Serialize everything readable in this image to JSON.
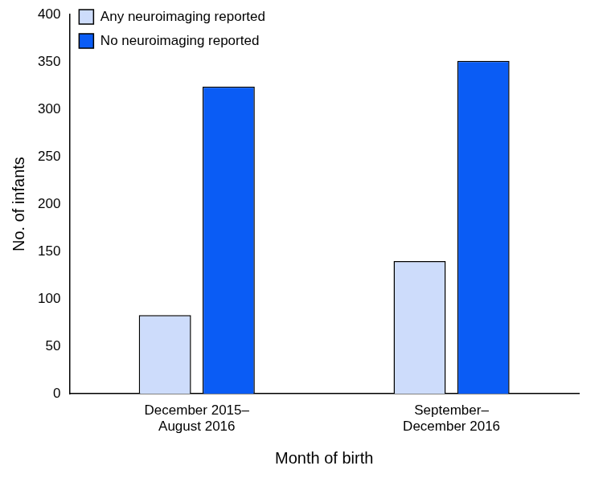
{
  "chart_data": {
    "type": "bar",
    "categories": [
      [
        "December 2015–",
        "August 2016"
      ],
      [
        "September–",
        "December 2016"
      ]
    ],
    "series": [
      {
        "name": "Any neuroimaging reported",
        "color": "#cddcfb",
        "values": [
          83,
          140
        ]
      },
      {
        "name": "No neuroimaging reported",
        "color": "#0a5cf5",
        "values": [
          324,
          351
        ]
      }
    ],
    "x_label": "Month of birth",
    "y_label": "No. of infants",
    "ylim": [
      0,
      400
    ],
    "yticks": [
      0,
      50,
      100,
      150,
      200,
      250,
      300,
      350,
      400
    ],
    "grid": false,
    "legend": "top-left"
  }
}
